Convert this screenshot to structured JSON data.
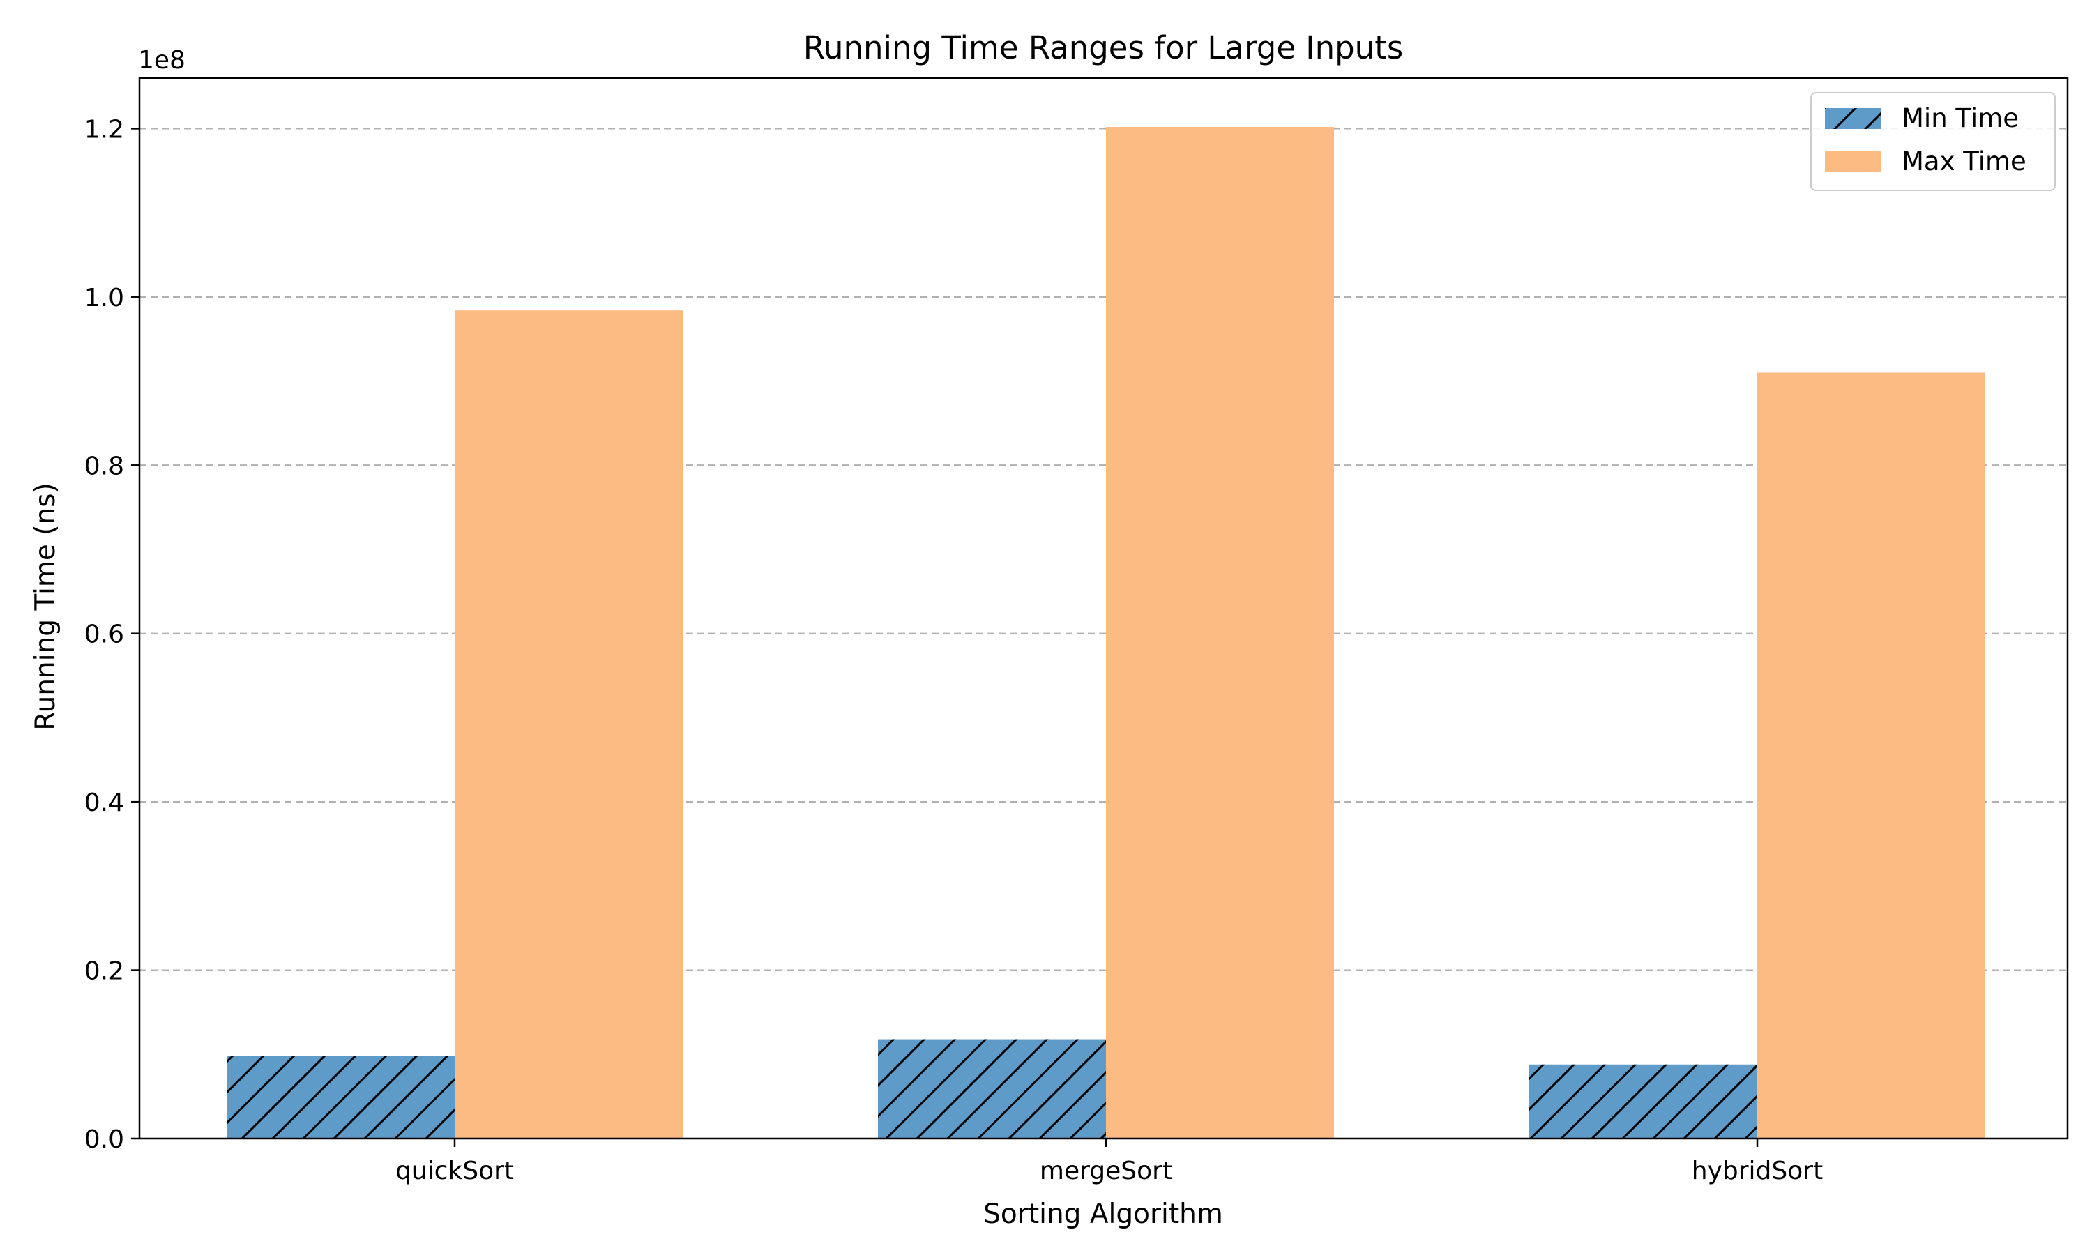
{
  "chart_data": {
    "type": "bar",
    "title": "Running Time Ranges for Large Inputs",
    "xlabel": "Sorting Algorithm",
    "ylabel": "Running Time (ns)",
    "y_offset_label": "1e8",
    "categories": [
      "quickSort",
      "mergeSort",
      "hybridSort"
    ],
    "series": [
      {
        "name": "Min Time",
        "values": [
          9800000,
          11800000,
          8800000
        ],
        "color": "#5f9bc9",
        "hatch": "diagonal"
      },
      {
        "name": "Max Time",
        "values": [
          98400000,
          120200000,
          91000000
        ],
        "color": "#fdbb84",
        "hatch": "none"
      }
    ],
    "ylim": [
      0,
      126000000
    ],
    "yticks": [
      0,
      20000000,
      40000000,
      60000000,
      80000000,
      100000000,
      120000000
    ],
    "ytick_labels": [
      "0.0",
      "0.2",
      "0.4",
      "0.6",
      "0.8",
      "1.0",
      "1.2"
    ],
    "grid": "y-dashed",
    "legend_position": "top-right"
  }
}
